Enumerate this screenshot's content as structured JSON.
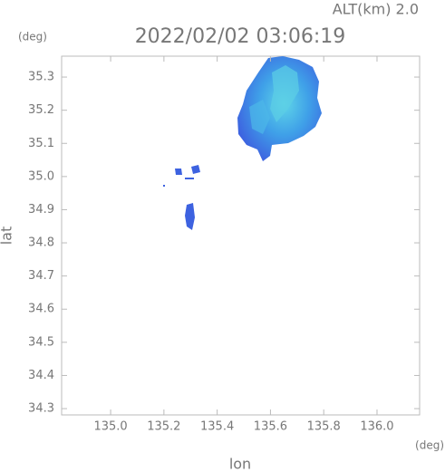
{
  "chart_data": {
    "type": "radar-map",
    "title": "2022/02/02 03:06:19",
    "altitude_label": "ALT(km) 2.0",
    "y_unit": "(deg)",
    "x_unit": "(deg)",
    "ylabel": "lat",
    "xlabel": "lon",
    "xlim": [
      134.816,
      136.16
    ],
    "ylim": [
      34.281,
      35.363
    ],
    "xticks": [
      {
        "value": 135.0,
        "label": "135.0"
      },
      135.2,
      135.4,
      135.6,
      135.8,
      {
        "value": 136.0,
        "label": "136.0"
      }
    ],
    "yticks": [
      34.3,
      34.4,
      34.5,
      34.6,
      34.7,
      34.8,
      34.9,
      {
        "value": 35.0,
        "label": "35.0"
      },
      35.1,
      35.2,
      35.3
    ]
  }
}
